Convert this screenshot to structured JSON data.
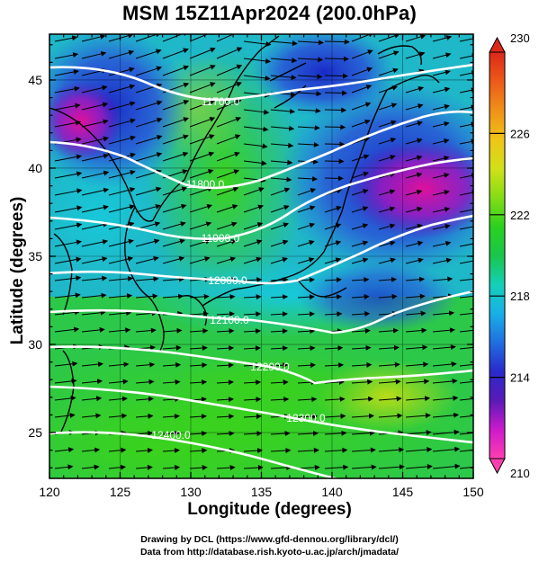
{
  "title": "MSM 15Z11Apr2024 (200.0hPa)",
  "axes": {
    "xlabel": "Longitude (degrees)",
    "ylabel": "Latitude  (degrees)",
    "xticks": [
      120,
      125,
      130,
      135,
      140,
      145,
      150
    ],
    "yticks": [
      25,
      30,
      35,
      40,
      45
    ],
    "xlim": [
      120,
      150
    ],
    "ylim": [
      22.4,
      47.6
    ]
  },
  "colorbar": {
    "min": 210,
    "max": 230,
    "ticks": [
      210,
      214,
      218,
      222,
      226,
      230
    ],
    "colors": [
      "#ff3fb0",
      "#cc1acc",
      "#5a1ab8",
      "#2a2acc",
      "#1f6fe0",
      "#18b0e8",
      "#14d0b8",
      "#19c64a",
      "#2ad21e",
      "#86dc16",
      "#d2e018",
      "#f0c418",
      "#f09018",
      "#ec5a18",
      "#dc2818"
    ]
  },
  "contours": [
    {
      "label": "11700.0"
    },
    {
      "label": "11800.0"
    },
    {
      "label": "11900.0"
    },
    {
      "label": "12000.0"
    },
    {
      "label": "12100.0"
    },
    {
      "label": "12200.0"
    },
    {
      "label": "12300.0"
    },
    {
      "label": "12400.0"
    }
  ],
  "credits": {
    "line1": "Drawing by DCL (https://www.gfd-dennou.org/library/dcl/)",
    "line2": "Data from http://database.rish.kyoto-u.ac.jp/arch/jmadata/"
  }
}
